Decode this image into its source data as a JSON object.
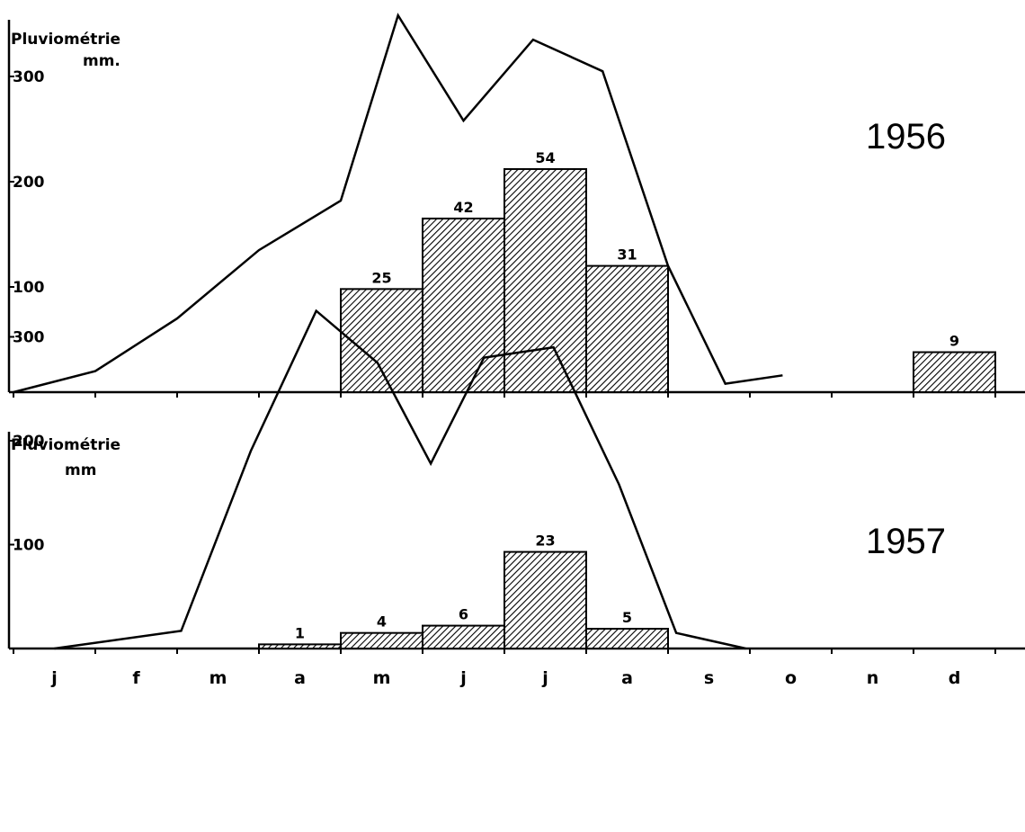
{
  "chart_data": [
    {
      "type": "bar",
      "title": "1956",
      "ylabel": "Pluviométrie",
      "yunit": "mm.",
      "ylim": [
        0,
        360
      ],
      "yticks": [
        100,
        200,
        300
      ],
      "categories": [
        "j",
        "f",
        "m",
        "a",
        "m",
        "j",
        "j",
        "a",
        "s",
        "o",
        "n",
        "d"
      ],
      "bar_values": [
        0,
        0,
        0,
        0,
        98,
        165,
        212,
        120,
        0,
        0,
        0,
        38
      ],
      "bar_labels": [
        "",
        "",
        "",
        "",
        "25",
        "42",
        "54",
        "31",
        "",
        "",
        "",
        "9"
      ],
      "line_points": [
        [
          0,
          0
        ],
        [
          1,
          20
        ],
        [
          2,
          70
        ],
        [
          3,
          135
        ],
        [
          4,
          182
        ],
        [
          4.7,
          358
        ],
        [
          5.5,
          258
        ],
        [
          6.35,
          335
        ],
        [
          7.2,
          305
        ],
        [
          8,
          120
        ],
        [
          8.7,
          8
        ],
        [
          9.4,
          16
        ]
      ]
    },
    {
      "type": "bar",
      "title": "1957",
      "ylabel": "Pluviométrie",
      "yunit": "mm",
      "ylim": [
        0,
        360
      ],
      "yticks": [
        100,
        200,
        300
      ],
      "categories": [
        "j",
        "f",
        "m",
        "a",
        "m",
        "j",
        "j",
        "a",
        "s",
        "o",
        "n",
        "d"
      ],
      "bar_values": [
        0,
        0,
        0,
        4,
        15,
        22,
        93,
        19,
        0,
        0,
        0,
        0
      ],
      "bar_labels": [
        "",
        "",
        "",
        "1",
        "4",
        "6",
        "23",
        "5",
        "",
        "",
        "",
        ""
      ],
      "line_points": [
        [
          0.5,
          0
        ],
        [
          2.05,
          17
        ],
        [
          2.9,
          190
        ],
        [
          3.7,
          325
        ],
        [
          4.45,
          275
        ],
        [
          5.1,
          178
        ],
        [
          5.75,
          280
        ],
        [
          6.6,
          290
        ],
        [
          7.4,
          158
        ],
        [
          8.1,
          15
        ],
        [
          8.95,
          0
        ]
      ]
    }
  ]
}
